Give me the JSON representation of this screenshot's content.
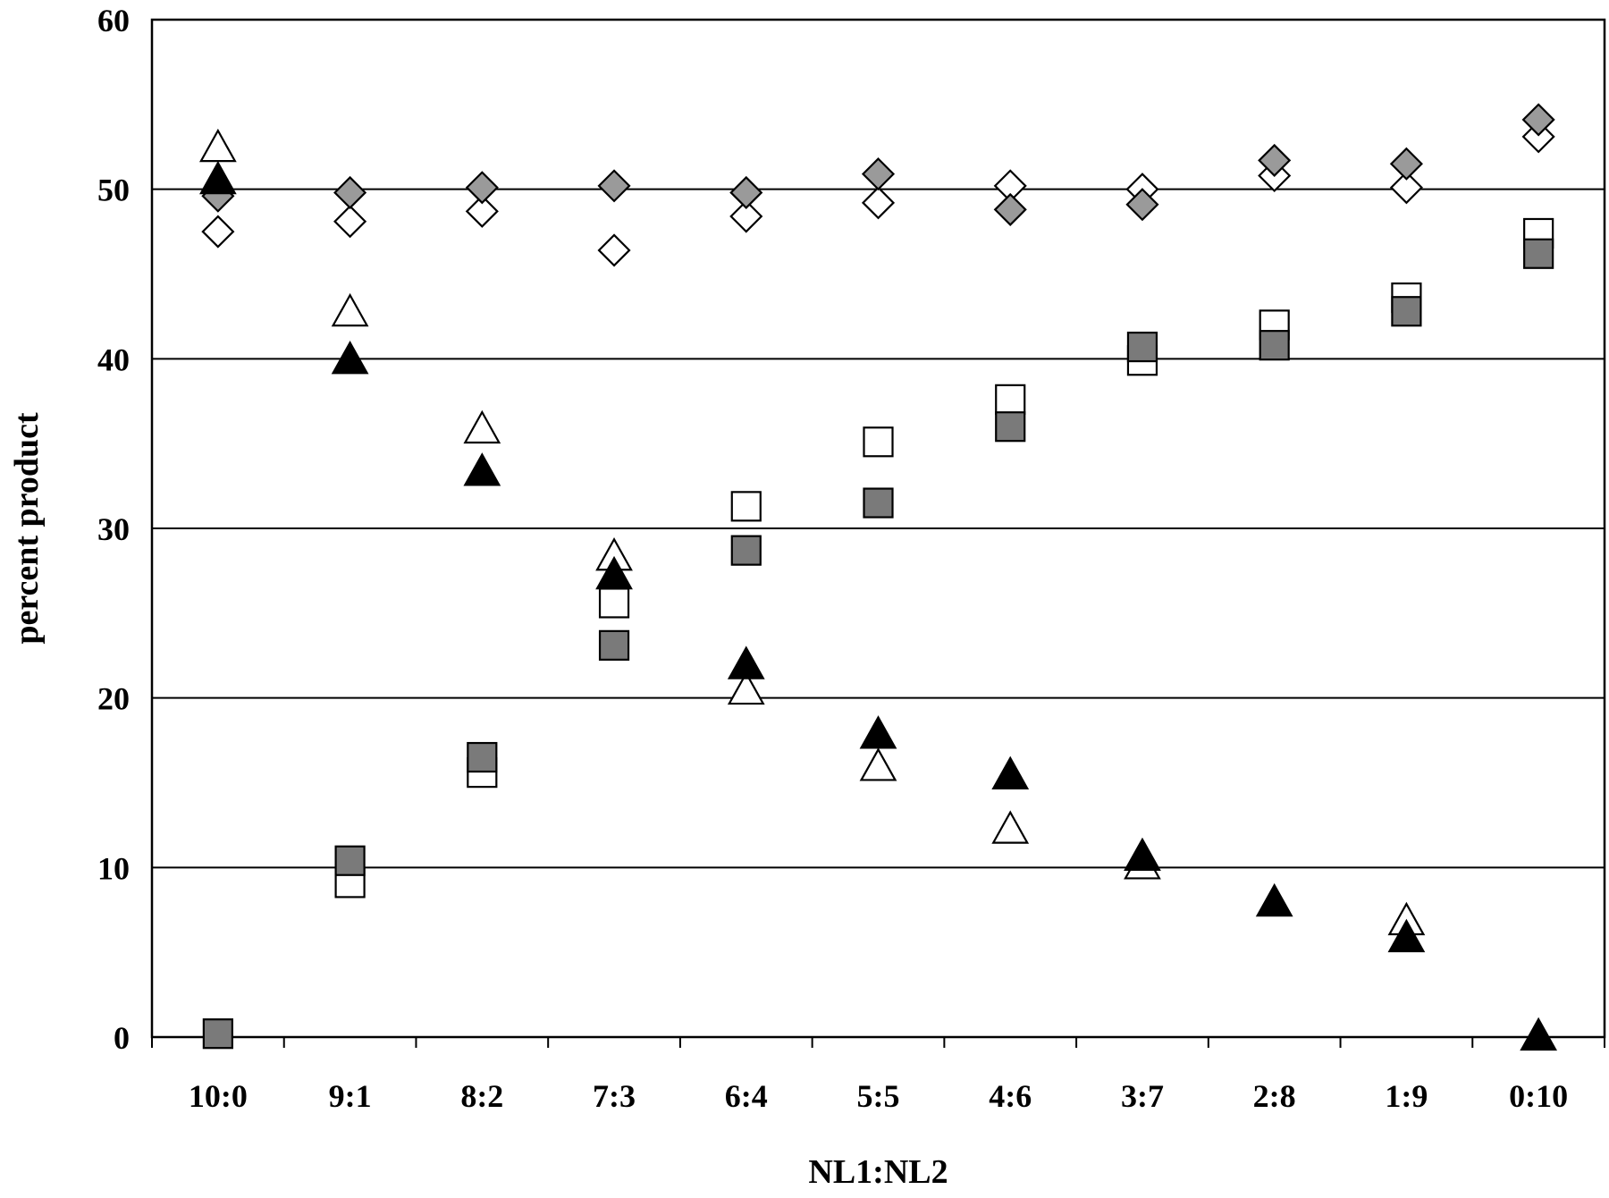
{
  "chart_data": {
    "type": "scatter",
    "title": "",
    "xlabel": "NL1:NL2",
    "ylabel": "percent product",
    "categories": [
      "10:0",
      "9:1",
      "8:2",
      "7:3",
      "6:4",
      "5:5",
      "4:6",
      "3:7",
      "2:8",
      "1:9",
      "0:10"
    ],
    "ylim": [
      0,
      60
    ],
    "yticks": [
      0,
      10,
      20,
      30,
      40,
      50,
      60
    ],
    "grid": "horizontal",
    "legend": "none",
    "series": [
      {
        "marker": "diamond",
        "fill": "#ffffff",
        "values": [
          47.5,
          48.1,
          48.7,
          46.4,
          48.4,
          49.2,
          50.2,
          50.0,
          50.8,
          50.1,
          53.1
        ]
      },
      {
        "marker": "diamond",
        "fill": "#9a9a9a",
        "values": [
          49.6,
          49.8,
          50.1,
          50.2,
          49.8,
          50.9,
          48.8,
          49.1,
          51.7,
          51.5,
          54.1
        ]
      },
      {
        "marker": "square",
        "fill": "#ffffff",
        "values": [
          null,
          9.1,
          15.6,
          25.6,
          31.3,
          35.1,
          37.6,
          39.9,
          42.0,
          43.6,
          47.4
        ]
      },
      {
        "marker": "square",
        "fill": "#7a7a7a",
        "values": [
          0.2,
          10.4,
          16.5,
          23.1,
          28.7,
          31.5,
          36.0,
          40.7,
          40.8,
          42.8,
          46.2
        ]
      },
      {
        "marker": "triangle",
        "fill": "#ffffff",
        "values": [
          52.4,
          42.7,
          35.8,
          28.3,
          20.4,
          15.9,
          12.2,
          10.1,
          null,
          6.8,
          null
        ]
      },
      {
        "marker": "triangle",
        "fill": "#000000",
        "values": [
          50.5,
          39.9,
          33.3,
          27.2,
          21.9,
          17.8,
          15.4,
          10.6,
          7.9,
          5.8,
          0.0
        ]
      }
    ]
  }
}
